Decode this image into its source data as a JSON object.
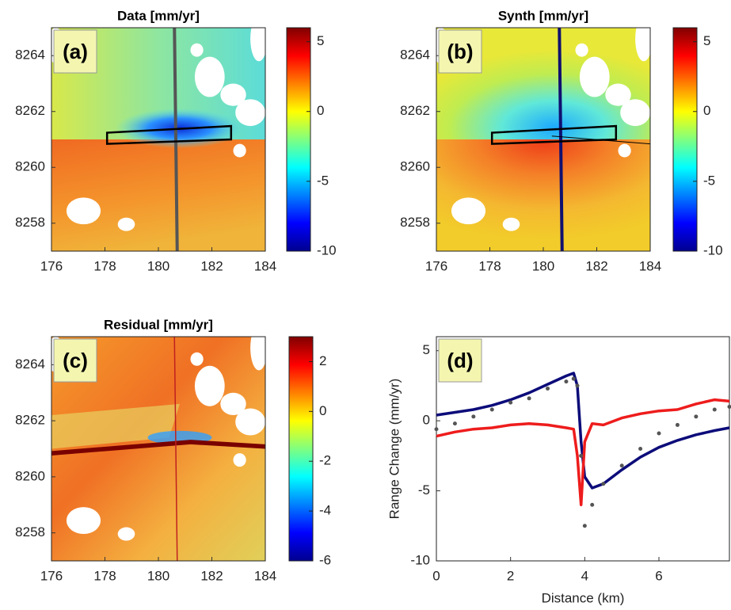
{
  "chart_data": [
    {
      "type": "heatmap",
      "title": "Data [mm/yr]",
      "label": "(a)",
      "xlim": [
        176,
        184
      ],
      "xticks": [
        176,
        178,
        180,
        182,
        184
      ],
      "ylim": [
        8257,
        8265
      ],
      "yticks": [
        8258,
        8260,
        8262,
        8264
      ],
      "clim": [
        -10,
        6
      ],
      "cticks": [
        -10,
        -5,
        0,
        5
      ]
    },
    {
      "type": "heatmap",
      "title": "Synth [mm/yr]",
      "label": "(b)",
      "xlim": [
        176,
        184
      ],
      "xticks": [
        176,
        178,
        180,
        182,
        184
      ],
      "ylim": [
        8257,
        8265
      ],
      "yticks": [
        8258,
        8260,
        8262,
        8264
      ],
      "clim": [
        -10,
        6
      ],
      "cticks": [
        -10,
        -5,
        0,
        5
      ]
    },
    {
      "type": "heatmap",
      "title": "Residual [mm/yr]",
      "label": "(c)",
      "xlim": [
        176,
        184
      ],
      "xticks": [
        176,
        178,
        180,
        182,
        184
      ],
      "ylim": [
        8257,
        8265
      ],
      "yticks": [
        8258,
        8260,
        8262,
        8264
      ],
      "clim": [
        -6,
        3
      ],
      "cticks": [
        -6,
        -4,
        -2,
        0,
        2
      ]
    },
    {
      "type": "line",
      "label": "(d)",
      "xlabel": "Distance (km)",
      "ylabel": "Range Change (mm/yr)",
      "xlim": [
        0,
        7.9
      ],
      "xticks": [
        0,
        2,
        4,
        6
      ],
      "ylim": [
        -10,
        6
      ],
      "yticks": [
        -10,
        -5,
        0,
        5
      ],
      "x": [
        0,
        0.5,
        1,
        1.5,
        2,
        2.5,
        3,
        3.5,
        3.7,
        3.8,
        3.9,
        4.0,
        4.2,
        4.5,
        5,
        5.5,
        6,
        6.5,
        7,
        7.5,
        7.9
      ],
      "series": [
        {
          "color": "#0c0c7a",
          "style": "line",
          "values": [
            0.4,
            0.6,
            0.8,
            1.1,
            1.5,
            2.0,
            2.6,
            3.2,
            3.4,
            2.5,
            -1.5,
            -4.0,
            -4.8,
            -4.5,
            -3.5,
            -2.6,
            -1.9,
            -1.4,
            -1.0,
            -0.7,
            -0.5
          ]
        },
        {
          "color": "#ee1c1c",
          "style": "line",
          "values": [
            -1.1,
            -0.8,
            -0.6,
            -0.5,
            -0.3,
            -0.2,
            -0.3,
            -0.5,
            -0.6,
            -2.5,
            -6.0,
            -1.5,
            -0.2,
            -0.3,
            0.2,
            0.5,
            0.7,
            0.8,
            1.2,
            1.5,
            1.4
          ]
        },
        {
          "color": "#555555",
          "style": "dots",
          "values": [
            -0.6,
            -0.2,
            0.3,
            0.8,
            1.3,
            1.6,
            2.3,
            2.8,
            3.0,
            2.5,
            -2.5,
            -7.5,
            -6.0,
            -4.5,
            -3.2,
            -2.0,
            -0.9,
            -0.3,
            0.3,
            0.8,
            1.0
          ]
        }
      ]
    }
  ]
}
